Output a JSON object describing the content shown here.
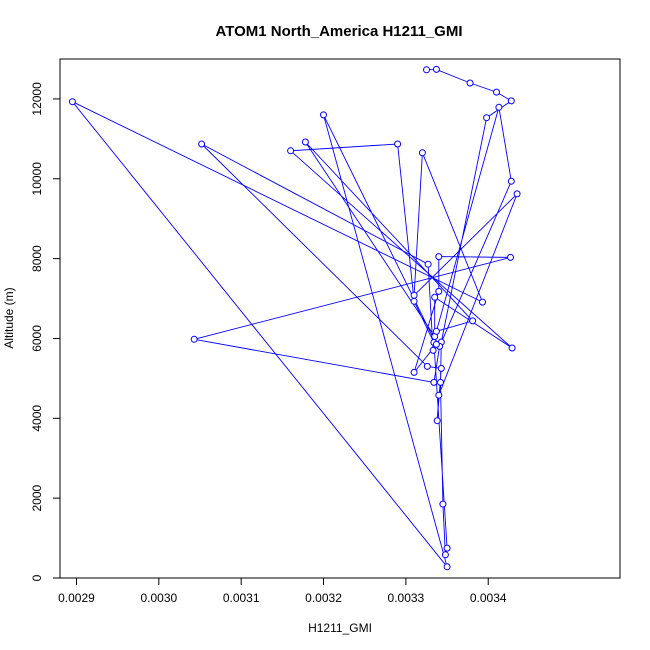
{
  "chart_data": {
    "type": "line",
    "title": "ATOM1 North_America H1211_GMI",
    "xlabel": "H1211_GMI",
    "ylabel": "Altitude (m)",
    "xlim": [
      0.00288,
      0.00356
    ],
    "ylim": [
      0,
      13000
    ],
    "x_ticks": [
      0.0029,
      0.003,
      0.0031,
      0.0032,
      0.0033,
      0.0034
    ],
    "x_tick_labels": [
      "0.0029",
      "0.0030",
      "0.0031",
      "0.0032",
      "0.0033",
      "0.0034"
    ],
    "y_ticks": [
      0,
      2000,
      4000,
      6000,
      8000,
      10000,
      12000
    ],
    "y_tick_labels": [
      "0",
      "2000",
      "4000",
      "6000",
      "8000",
      "10000",
      "12000"
    ],
    "grid": false,
    "series_color": "#0000ff",
    "series": [
      {
        "points": [
          [
            0.003325,
            12730
          ],
          [
            0.003337,
            12740
          ],
          [
            0.003378,
            12400
          ],
          [
            0.00341,
            12170
          ],
          [
            0.003428,
            11950
          ],
          [
            0.003398,
            11530
          ],
          [
            0.003343,
            5910
          ],
          [
            0.003342,
            4900
          ],
          [
            0.003345,
            1850
          ],
          [
            0.003348,
            580
          ],
          [
            0.00335,
            750
          ],
          [
            0.003334,
            5900
          ],
          [
            0.00331,
            6930
          ],
          [
            0.00329,
            10870
          ],
          [
            0.00316,
            10700
          ],
          [
            0.003429,
            5760
          ],
          [
            0.003335,
            7030
          ],
          [
            0.003335,
            6050
          ],
          [
            0.003178,
            10920
          ],
          [
            0.003381,
            6440
          ],
          [
            0.003337,
            6180
          ],
          [
            0.003413,
            11790
          ],
          [
            0.003428,
            9940
          ],
          [
            0.003341,
            5800
          ],
          [
            0.003334,
            4900
          ],
          [
            0.003043,
            5980
          ],
          [
            0.003427,
            8030
          ],
          [
            0.00334,
            8050
          ],
          [
            0.00334,
            7180
          ],
          [
            0.00331,
            5150
          ],
          [
            0.003337,
            5850
          ],
          [
            0.0032,
            11600
          ],
          [
            0.00335,
            280
          ],
          [
            0.002895,
            11930
          ],
          [
            0.003393,
            6910
          ],
          [
            0.00332,
            10650
          ],
          [
            0.00331,
            7080
          ],
          [
            0.003435,
            9620
          ],
          [
            0.00334,
            4580
          ],
          [
            0.003338,
            3940
          ],
          [
            0.003343,
            5250
          ],
          [
            0.003326,
            5300
          ],
          [
            0.003052,
            10870
          ],
          [
            0.003327,
            7860
          ],
          [
            0.003333,
            5700
          ]
        ]
      }
    ]
  }
}
